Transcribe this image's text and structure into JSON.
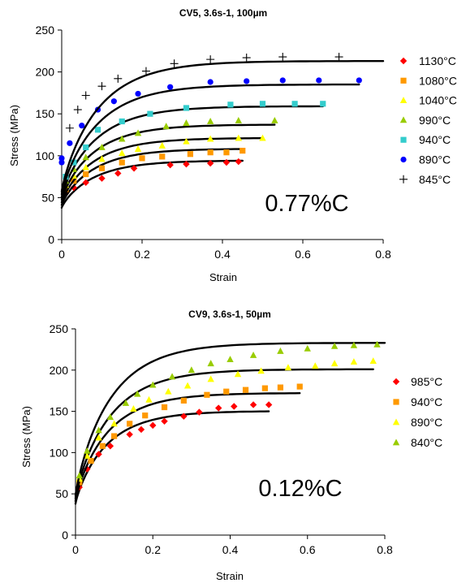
{
  "chart_data": [
    {
      "type": "scatter",
      "title": "CV5, 3.6s-1, 100µm",
      "xlabel": "Strain",
      "ylabel": "Stress (MPa)",
      "xlim": [
        0,
        0.8
      ],
      "ylim": [
        0,
        250
      ],
      "x_ticks": [
        "0",
        "0.2",
        "0.4",
        "0.6",
        "0.8"
      ],
      "y_ticks": [
        "0",
        "50",
        "100",
        "150",
        "200",
        "250"
      ],
      "grid": false,
      "legend_position": "right",
      "annotation": "0.77%C",
      "series": [
        {
          "name": "1130°C",
          "marker": "diamond",
          "color": "#ff0000",
          "points": [
            [
              0.01,
              55
            ],
            [
              0.03,
              62
            ],
            [
              0.06,
              68
            ],
            [
              0.1,
              73
            ],
            [
              0.14,
              79
            ],
            [
              0.18,
              85
            ],
            [
              0.27,
              89
            ],
            [
              0.31,
              90
            ],
            [
              0.37,
              91
            ],
            [
              0.41,
              92
            ],
            [
              0.44,
              93
            ]
          ],
          "fit_end": 0.45,
          "fit_plateau": 94
        },
        {
          "name": "1080°C",
          "marker": "square",
          "color": "#ff9900",
          "points": [
            [
              0.01,
              60
            ],
            [
              0.03,
              70
            ],
            [
              0.06,
              78
            ],
            [
              0.1,
              85
            ],
            [
              0.15,
              92
            ],
            [
              0.2,
              97
            ],
            [
              0.25,
              99
            ],
            [
              0.32,
              102
            ],
            [
              0.37,
              104
            ],
            [
              0.41,
              104
            ],
            [
              0.45,
              106
            ]
          ],
          "fit_end": 0.45,
          "fit_plateau": 108
        },
        {
          "name": "1040°C",
          "marker": "triangle",
          "color": "#ffff00",
          "points": [
            [
              0.01,
              65
            ],
            [
              0.03,
              76
            ],
            [
              0.06,
              86
            ],
            [
              0.1,
              96
            ],
            [
              0.15,
              103
            ],
            [
              0.19,
              108
            ],
            [
              0.25,
              112
            ],
            [
              0.31,
              117
            ],
            [
              0.37,
              120
            ],
            [
              0.44,
              121
            ],
            [
              0.5,
              121
            ]
          ],
          "fit_end": 0.5,
          "fit_plateau": 121
        },
        {
          "name": "990°C",
          "marker": "triangle",
          "color": "#99cc00",
          "points": [
            [
              0.01,
              70
            ],
            [
              0.03,
              84
            ],
            [
              0.06,
              98
            ],
            [
              0.1,
              110
            ],
            [
              0.15,
              120
            ],
            [
              0.19,
              127
            ],
            [
              0.26,
              135
            ],
            [
              0.31,
              139
            ],
            [
              0.37,
              141
            ],
            [
              0.44,
              142
            ],
            [
              0.53,
              142
            ]
          ],
          "fit_end": 0.53,
          "fit_plateau": 137
        },
        {
          "name": "940°C",
          "marker": "square",
          "color": "#33cccc",
          "points": [
            [
              0.01,
              75
            ],
            [
              0.03,
              92
            ],
            [
              0.06,
              110
            ],
            [
              0.09,
              131
            ],
            [
              0.15,
              141
            ],
            [
              0.22,
              150
            ],
            [
              0.31,
              157
            ],
            [
              0.42,
              161
            ],
            [
              0.5,
              162
            ],
            [
              0.58,
              162
            ],
            [
              0.65,
              162
            ]
          ],
          "fit_end": 0.65,
          "fit_plateau": 159
        },
        {
          "name": "890°C",
          "marker": "circle",
          "color": "#0000ff",
          "points": [
            [
              0.0,
              92
            ],
            [
              0.0,
              97
            ],
            [
              0.02,
              115
            ],
            [
              0.05,
              136
            ],
            [
              0.09,
              155
            ],
            [
              0.13,
              165
            ],
            [
              0.19,
              174
            ],
            [
              0.27,
              182
            ],
            [
              0.37,
              188
            ],
            [
              0.46,
              189
            ],
            [
              0.55,
              190
            ],
            [
              0.64,
              190
            ],
            [
              0.74,
              190
            ]
          ],
          "fit_end": 0.74,
          "fit_plateau": 185
        },
        {
          "name": "845°C",
          "marker": "plus",
          "color": "#000000",
          "points": [
            [
              0.02,
              133
            ],
            [
              0.04,
              155
            ],
            [
              0.06,
              172
            ],
            [
              0.1,
              183
            ],
            [
              0.14,
              192
            ],
            [
              0.21,
              201
            ],
            [
              0.28,
              210
            ],
            [
              0.37,
              215
            ],
            [
              0.46,
              217
            ],
            [
              0.55,
              218
            ],
            [
              0.69,
              218
            ]
          ],
          "fit_end": 0.8,
          "fit_plateau": 213
        }
      ]
    },
    {
      "type": "scatter",
      "title": "CV9, 3.6s-1, 50µm",
      "xlabel": "Strain",
      "ylabel": "Stress (MPa)",
      "xlim": [
        0,
        0.8
      ],
      "ylim": [
        0,
        250
      ],
      "x_ticks": [
        "0",
        "0.2",
        "0.4",
        "0.6",
        "0.8"
      ],
      "y_ticks": [
        "0",
        "50",
        "100",
        "150",
        "200",
        "250"
      ],
      "grid": false,
      "legend_position": "right",
      "annotation": "0.12%C",
      "series": [
        {
          "name": "985°C",
          "marker": "diamond",
          "color": "#ff0000",
          "points": [
            [
              0.01,
              58
            ],
            [
              0.03,
              80
            ],
            [
              0.06,
              98
            ],
            [
              0.09,
              108
            ],
            [
              0.14,
              122
            ],
            [
              0.17,
              128
            ],
            [
              0.2,
              133
            ],
            [
              0.23,
              138
            ],
            [
              0.28,
              144
            ],
            [
              0.32,
              149
            ],
            [
              0.37,
              154
            ],
            [
              0.41,
              156
            ],
            [
              0.46,
              158
            ],
            [
              0.5,
              158
            ]
          ],
          "fit_end": 0.5,
          "fit_plateau": 150
        },
        {
          "name": "940°C",
          "marker": "square",
          "color": "#ff9900",
          "points": [
            [
              0.01,
              64
            ],
            [
              0.04,
              90
            ],
            [
              0.07,
              108
            ],
            [
              0.1,
              120
            ],
            [
              0.14,
              135
            ],
            [
              0.18,
              145
            ],
            [
              0.23,
              155
            ],
            [
              0.28,
              163
            ],
            [
              0.34,
              170
            ],
            [
              0.39,
              174
            ],
            [
              0.44,
              176
            ],
            [
              0.49,
              178
            ],
            [
              0.53,
              179
            ],
            [
              0.58,
              180
            ]
          ],
          "fit_end": 0.58,
          "fit_plateau": 172
        },
        {
          "name": "890°C",
          "marker": "triangle",
          "color": "#ffff00",
          "points": [
            [
              0.01,
              68
            ],
            [
              0.03,
              96
            ],
            [
              0.06,
              118
            ],
            [
              0.1,
              135
            ],
            [
              0.15,
              153
            ],
            [
              0.19,
              164
            ],
            [
              0.24,
              174
            ],
            [
              0.29,
              181
            ],
            [
              0.35,
              189
            ],
            [
              0.42,
              195
            ],
            [
              0.48,
              199
            ],
            [
              0.55,
              203
            ],
            [
              0.62,
              205
            ],
            [
              0.67,
              208
            ],
            [
              0.72,
              210
            ],
            [
              0.77,
              211
            ]
          ],
          "fit_end": 0.77,
          "fit_plateau": 201
        },
        {
          "name": "840°C",
          "marker": "triangle",
          "color": "#99cc00",
          "points": [
            [
              0.01,
              72
            ],
            [
              0.03,
              102
            ],
            [
              0.06,
              127
            ],
            [
              0.09,
              143
            ],
            [
              0.13,
              160
            ],
            [
              0.16,
              171
            ],
            [
              0.2,
              182
            ],
            [
              0.25,
              192
            ],
            [
              0.3,
              200
            ],
            [
              0.35,
              208
            ],
            [
              0.4,
              213
            ],
            [
              0.46,
              218
            ],
            [
              0.53,
              223
            ],
            [
              0.6,
              226
            ],
            [
              0.67,
              229
            ],
            [
              0.72,
              230
            ],
            [
              0.78,
              231
            ]
          ],
          "fit_end": 0.8,
          "fit_plateau": 233
        }
      ]
    }
  ]
}
